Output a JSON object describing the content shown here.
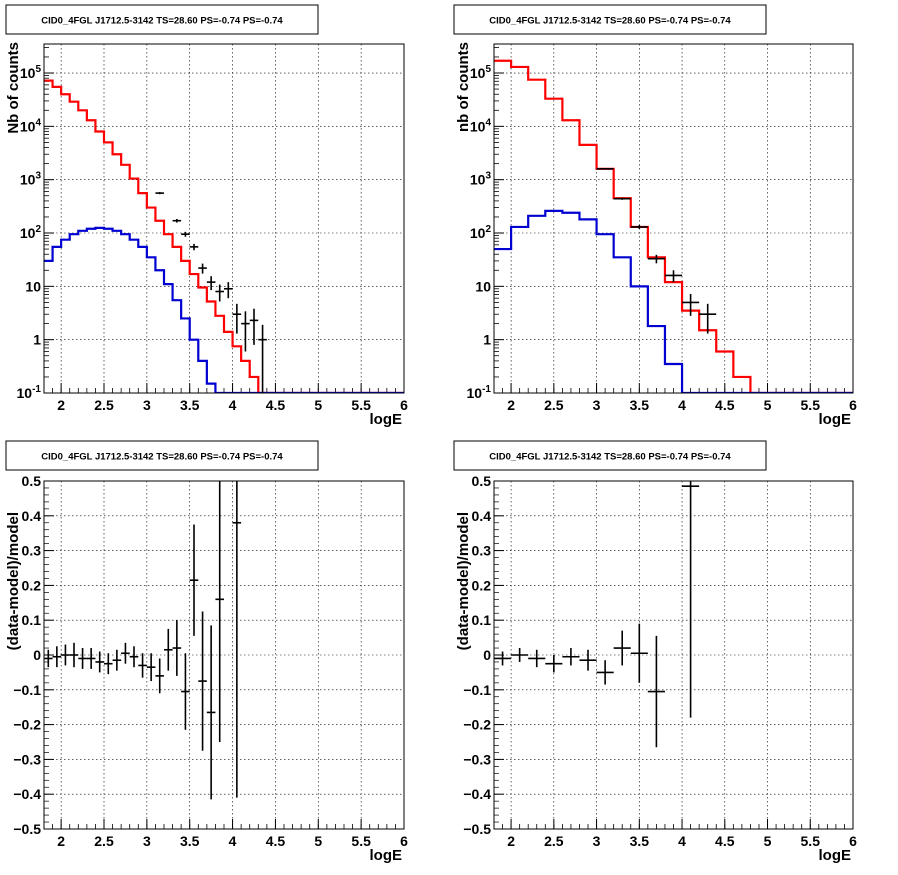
{
  "colors": {
    "data": "#000000",
    "model_total": "#ff0000",
    "model_source": "#0000d0",
    "grid": "#000000",
    "frame": "#000000"
  },
  "chart_data": [
    {
      "type": "step-histogram",
      "title": "CID0_4FGL J1712.5-3142 TS=28.60 PS=-0.74 PS=-0.74",
      "xlabel": "logE",
      "ylabel": "Nb of counts",
      "xlim": [
        1.8,
        6.0
      ],
      "ylim": [
        0.1,
        350000
      ],
      "yscale": "log",
      "grid": true,
      "xticks": [
        "2",
        "2.5",
        "3",
        "3.5",
        "4",
        "4.5",
        "5",
        "5.5",
        "6"
      ],
      "yticks": [
        "10^-1",
        "1",
        "10",
        "10^2",
        "10^3",
        "10^4",
        "10^5"
      ],
      "bin_edges": [
        1.8,
        1.9,
        2.0,
        2.1,
        2.2,
        2.3,
        2.4,
        2.5,
        2.6,
        2.7,
        2.8,
        2.9,
        3.0,
        3.1,
        3.2,
        3.3,
        3.4,
        3.5,
        3.6,
        3.7,
        3.8,
        3.9,
        4.0,
        4.1,
        4.2,
        4.3,
        4.4,
        4.5,
        4.6,
        4.7,
        4.8,
        4.9,
        5.0,
        5.1,
        5.2,
        5.3,
        5.4,
        5.5,
        5.6,
        5.7,
        5.8,
        5.9,
        6.0
      ],
      "series": [
        {
          "role": "model_total",
          "values": [
            72000,
            55000,
            40000,
            29000,
            20000,
            13000,
            8000,
            5000,
            3000,
            1900,
            1050,
            560,
            300,
            170,
            95,
            55,
            30,
            17,
            9.5,
            5.2,
            2.8,
            1.4,
            0.75,
            0.4,
            0.2,
            0.1,
            0.1,
            0.1,
            0.1,
            0.1,
            0.1,
            0.1,
            0.1,
            0.1,
            0.1,
            0.1,
            0.1,
            0.1,
            0.1,
            0.1,
            0.1,
            0.1
          ]
        },
        {
          "role": "model_source",
          "values": [
            30,
            55,
            75,
            95,
            110,
            120,
            125,
            120,
            110,
            95,
            75,
            55,
            35,
            20,
            11,
            5.5,
            2.5,
            1.0,
            0.4,
            0.15,
            0.1,
            0.1,
            0.1,
            0.1,
            0.1,
            0.1,
            0.1,
            0.1,
            0.1,
            0.1,
            0.1,
            0.1,
            0.1,
            0.1,
            0.1,
            0.1,
            0.1,
            0.1,
            0.1,
            0.1,
            0.1,
            0.1
          ]
        },
        {
          "role": "data",
          "points": [
            {
              "x": 3.15,
              "y": 560,
              "err": 25
            },
            {
              "x": 3.35,
              "y": 170,
              "err": 13
            },
            {
              "x": 3.45,
              "y": 95,
              "err": 10
            },
            {
              "x": 3.55,
              "y": 55,
              "err": 7.5
            },
            {
              "x": 3.65,
              "y": 22,
              "err": 4.7
            },
            {
              "x": 3.75,
              "y": 12,
              "err": 3.5
            },
            {
              "x": 3.85,
              "y": 8,
              "err": 2.8
            },
            {
              "x": 3.95,
              "y": 9,
              "err": 3
            },
            {
              "x": 4.05,
              "y": 3,
              "err": 1.7
            },
            {
              "x": 4.15,
              "y": 2,
              "err": 1.4
            },
            {
              "x": 4.25,
              "y": 2.3,
              "err": 1.5
            },
            {
              "x": 4.35,
              "y": 1,
              "err": 0.9
            }
          ]
        }
      ]
    },
    {
      "type": "step-histogram",
      "title": "CID0_4FGL J1712.5-3142 TS=28.60 PS=-0.74 PS=-0.74",
      "xlabel": "logE",
      "ylabel": "nb of counts",
      "xlim": [
        1.8,
        6.0
      ],
      "ylim": [
        0.1,
        350000
      ],
      "yscale": "log",
      "grid": true,
      "xticks": [
        "2",
        "2.5",
        "3",
        "3.5",
        "4",
        "4.5",
        "5",
        "5.5",
        "6"
      ],
      "yticks": [
        "10^-1",
        "1",
        "10",
        "10^2",
        "10^3",
        "10^4",
        "10^5"
      ],
      "bin_edges": [
        1.8,
        2.0,
        2.2,
        2.4,
        2.6,
        2.8,
        3.0,
        3.2,
        3.4,
        3.6,
        3.8,
        4.0,
        4.2,
        4.4,
        4.6,
        4.8,
        5.0,
        5.2,
        5.4,
        5.6,
        5.8,
        6.0
      ],
      "series": [
        {
          "role": "model_total",
          "values": [
            170000,
            130000,
            75000,
            33000,
            13000,
            4500,
            1600,
            450,
            130,
            35,
            12,
            3.5,
            1.5,
            0.6,
            0.2,
            0.1,
            0.1,
            0.1,
            0.1,
            0.1,
            0.1
          ]
        },
        {
          "role": "model_source",
          "values": [
            50,
            130,
            210,
            260,
            240,
            180,
            95,
            35,
            10,
            1.8,
            0.35,
            0.1,
            0.1,
            0.1,
            0.1,
            0.1,
            0.1,
            0.1,
            0.1,
            0.1,
            0.1
          ]
        },
        {
          "role": "data",
          "points": [
            {
              "x": 3.1,
              "y": 1600,
              "err": 40
            },
            {
              "x": 3.3,
              "y": 440,
              "err": 21
            },
            {
              "x": 3.5,
              "y": 130,
              "err": 11
            },
            {
              "x": 3.7,
              "y": 33,
              "err": 6
            },
            {
              "x": 3.9,
              "y": 16,
              "err": 4
            },
            {
              "x": 4.1,
              "y": 5,
              "err": 2.2
            },
            {
              "x": 4.3,
              "y": 3,
              "err": 1.7
            }
          ]
        }
      ]
    },
    {
      "type": "scatter-errorbars",
      "title": "CID0_4FGL J1712.5-3142 TS=28.60 PS=-0.74 PS=-0.74",
      "xlabel": "logE",
      "ylabel": "(data-model)/model",
      "xlim": [
        1.8,
        6.0
      ],
      "ylim": [
        -0.5,
        0.5
      ],
      "grid": true,
      "xticks": [
        "2",
        "2.5",
        "3",
        "3.5",
        "4",
        "4.5",
        "5",
        "5.5",
        "6"
      ],
      "yticks": [
        "−0.5",
        "−0.4",
        "−0.3",
        "−0.2",
        "−0.1",
        "0",
        "0.1",
        "0.2",
        "0.3",
        "0.4",
        "0.5"
      ],
      "bin_halfwidth": 0.05,
      "points": [
        {
          "x": 1.85,
          "y": -0.01,
          "err": 0.025
        },
        {
          "x": 1.95,
          "y": -0.005,
          "err": 0.03
        },
        {
          "x": 2.05,
          "y": 0.0,
          "err": 0.03
        },
        {
          "x": 2.15,
          "y": 0.0,
          "err": 0.035
        },
        {
          "x": 2.25,
          "y": -0.01,
          "err": 0.03
        },
        {
          "x": 2.35,
          "y": -0.01,
          "err": 0.03
        },
        {
          "x": 2.45,
          "y": -0.02,
          "err": 0.03
        },
        {
          "x": 2.55,
          "y": -0.025,
          "err": 0.03
        },
        {
          "x": 2.65,
          "y": -0.015,
          "err": 0.03
        },
        {
          "x": 2.75,
          "y": 0.005,
          "err": 0.03
        },
        {
          "x": 2.85,
          "y": -0.005,
          "err": 0.03
        },
        {
          "x": 2.95,
          "y": -0.03,
          "err": 0.035
        },
        {
          "x": 3.05,
          "y": -0.035,
          "err": 0.04
        },
        {
          "x": 3.15,
          "y": -0.06,
          "err": 0.05
        },
        {
          "x": 3.25,
          "y": 0.015,
          "err": 0.06
        },
        {
          "x": 3.35,
          "y": 0.02,
          "err": 0.08
        },
        {
          "x": 3.45,
          "y": -0.105,
          "err": 0.11
        },
        {
          "x": 3.55,
          "y": 0.215,
          "err": 0.16
        },
        {
          "x": 3.65,
          "y": -0.075,
          "err": 0.2
        },
        {
          "x": 3.75,
          "y": -0.165,
          "err": 0.25
        },
        {
          "x": 3.85,
          "y": 0.16,
          "err": 0.41
        },
        {
          "x": 4.05,
          "y": 0.38,
          "err": 0.79
        }
      ]
    },
    {
      "type": "scatter-errorbars",
      "title": "CID0_4FGL J1712.5-3142 TS=28.60 PS=-0.74 PS=-0.74",
      "xlabel": "logE",
      "ylabel": "(data-model)/model",
      "xlim": [
        1.8,
        6.0
      ],
      "ylim": [
        -0.5,
        0.5
      ],
      "grid": true,
      "xticks": [
        "2",
        "2.5",
        "3",
        "3.5",
        "4",
        "4.5",
        "5",
        "5.5",
        "6"
      ],
      "yticks": [
        "−0.5",
        "−0.4",
        "−0.3",
        "−0.2",
        "−0.1",
        "0",
        "0.1",
        "0.2",
        "0.3",
        "0.4",
        "0.5"
      ],
      "bin_halfwidth": 0.1,
      "points": [
        {
          "x": 1.9,
          "y": -0.01,
          "err": 0.02
        },
        {
          "x": 2.1,
          "y": 0.0,
          "err": 0.02
        },
        {
          "x": 2.3,
          "y": -0.01,
          "err": 0.025
        },
        {
          "x": 2.5,
          "y": -0.025,
          "err": 0.025
        },
        {
          "x": 2.7,
          "y": -0.005,
          "err": 0.025
        },
        {
          "x": 2.9,
          "y": -0.015,
          "err": 0.03
        },
        {
          "x": 3.1,
          "y": -0.05,
          "err": 0.035
        },
        {
          "x": 3.3,
          "y": 0.02,
          "err": 0.05
        },
        {
          "x": 3.5,
          "y": 0.005,
          "err": 0.085
        },
        {
          "x": 3.7,
          "y": -0.105,
          "err": 0.16
        },
        {
          "x": 4.1,
          "y": 0.485,
          "err": 0.665
        }
      ]
    }
  ]
}
